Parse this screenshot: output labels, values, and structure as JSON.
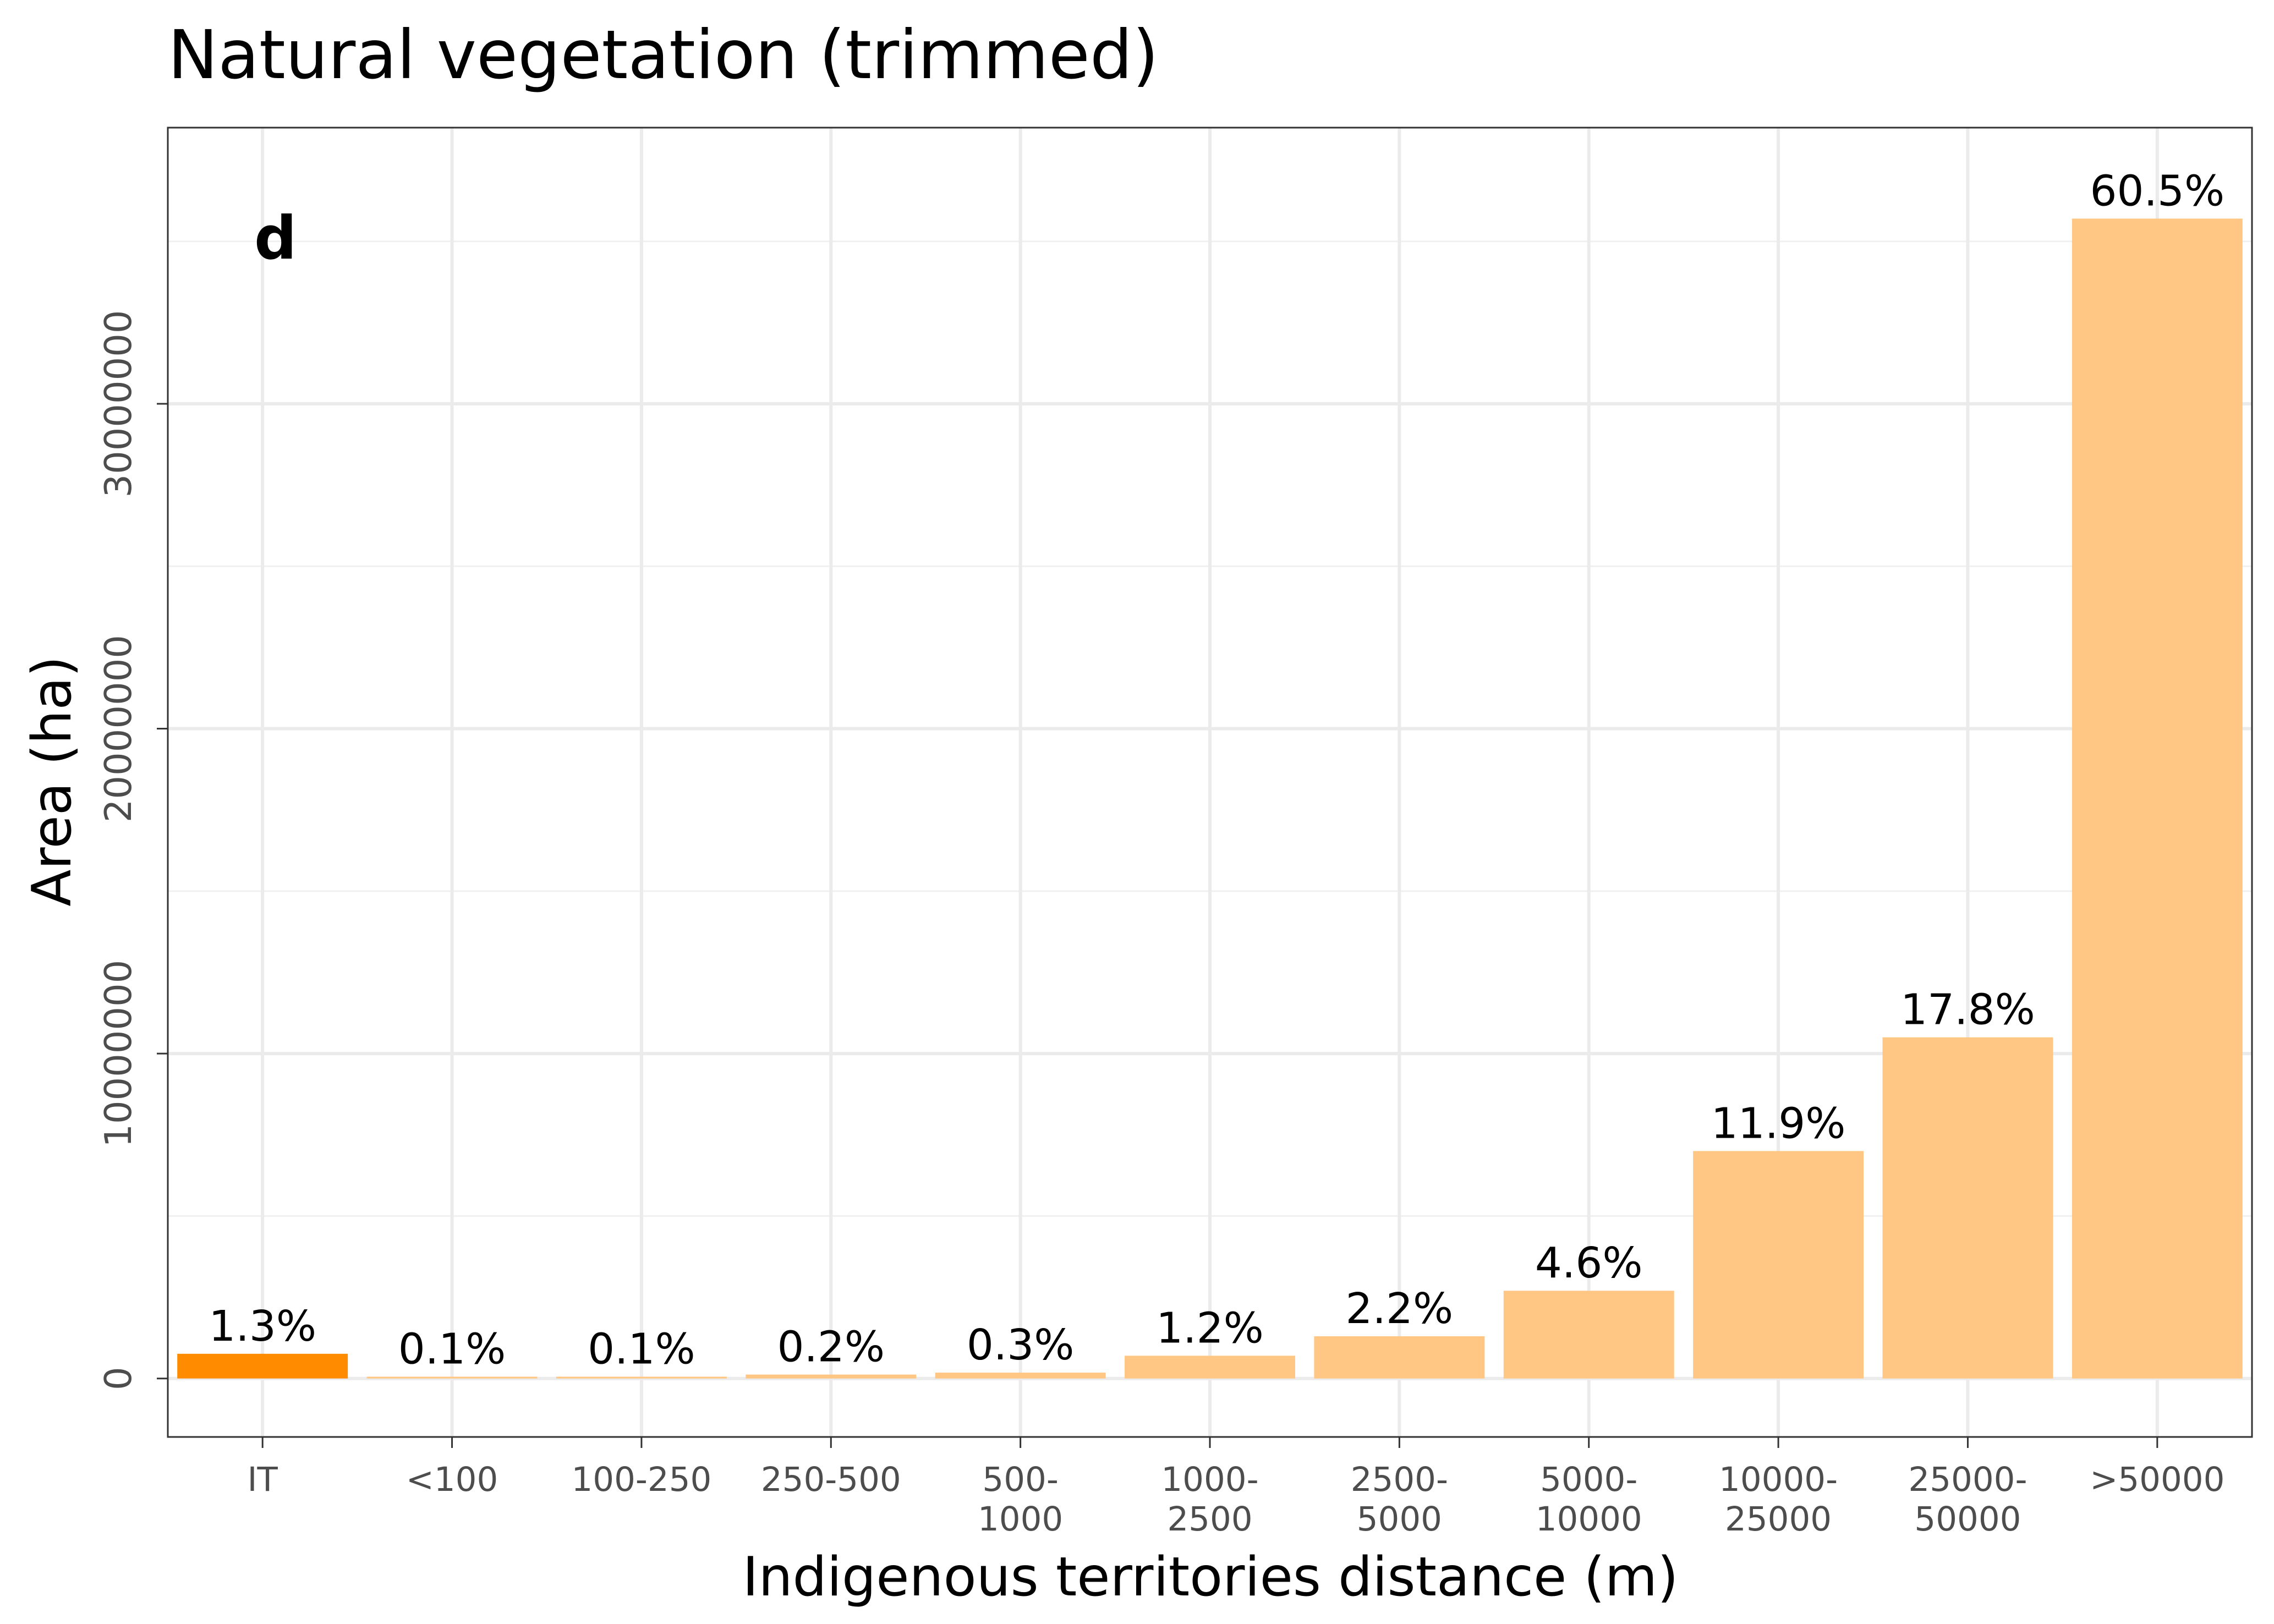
{
  "chart_data": {
    "type": "bar",
    "title": "Natural vegetation (trimmed)",
    "panel_tag": "d",
    "xlabel": "Indigenous territories distance (m)",
    "ylabel": "Area (ha)",
    "categories": [
      [
        "IT"
      ],
      [
        "<100"
      ],
      [
        "100-250"
      ],
      [
        "250-500"
      ],
      [
        "500-",
        "1000"
      ],
      [
        "1000-",
        "2500"
      ],
      [
        "2500-",
        "5000"
      ],
      [
        "5000-",
        "10000"
      ],
      [
        "10000-",
        "25000"
      ],
      [
        "25000-",
        "50000"
      ],
      [
        ">50000"
      ]
    ],
    "values": [
      760000,
      55000,
      55000,
      120000,
      180000,
      700000,
      1300000,
      2700000,
      7000000,
      10500000,
      35700000
    ],
    "labels": [
      "1.3%",
      "0.1%",
      "0.1%",
      "0.2%",
      "0.3%",
      "1.2%",
      "2.2%",
      "4.6%",
      "11.9%",
      "17.8%",
      "60.5%"
    ],
    "colors": [
      "#ff8c00",
      "#ffc783",
      "#ffc783",
      "#ffc783",
      "#ffc783",
      "#ffc783",
      "#ffc783",
      "#ffc783",
      "#ffc783",
      "#ffc783",
      "#ffc783"
    ],
    "yticks": [
      0,
      10000000,
      20000000,
      30000000
    ],
    "ytick_labels": [
      "0",
      "10000000",
      "20000000",
      "30000000"
    ],
    "ylim": [
      -1800000,
      38500000
    ],
    "grid": true,
    "legend": "none"
  }
}
